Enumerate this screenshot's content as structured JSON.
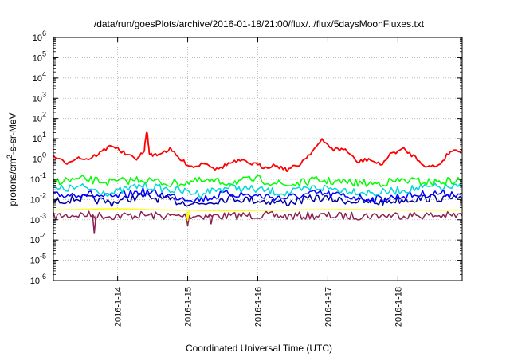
{
  "chart_data": {
    "type": "line",
    "title": "/data/run/goesPlots/archive/2016-01-18/21:00/flux/../flux/5daysMoonFluxes.txt",
    "xlabel": "Coordinated Universal Time (UTC)",
    "ylabel_parts": [
      "protons/cm",
      "2",
      "-s-sr-MeV"
    ],
    "y_scale": "log",
    "ylim": [
      1e-06,
      1000000.0
    ],
    "y_ticks": [
      {
        "base": "10",
        "exp": "-6",
        "value": 1e-06
      },
      {
        "base": "10",
        "exp": "-5",
        "value": 1e-05
      },
      {
        "base": "10",
        "exp": "-4",
        "value": 0.0001
      },
      {
        "base": "10",
        "exp": "-3",
        "value": 0.001
      },
      {
        "base": "10",
        "exp": "-2",
        "value": 0.01
      },
      {
        "base": "10",
        "exp": "-1",
        "value": 0.1
      },
      {
        "base": "10",
        "exp": "0",
        "value": 1
      },
      {
        "base": "10",
        "exp": "1",
        "value": 10
      },
      {
        "base": "10",
        "exp": "2",
        "value": 100
      },
      {
        "base": "10",
        "exp": "3",
        "value": 1000
      },
      {
        "base": "10",
        "exp": "4",
        "value": 10000
      },
      {
        "base": "10",
        "exp": "5",
        "value": 100000
      },
      {
        "base": "10",
        "exp": "6",
        "value": 1000000
      }
    ],
    "xlim": [
      "2016-01-13 02:00",
      "2016-01-18 22:00"
    ],
    "x_ticks": [
      {
        "label": "2016-1-14",
        "value": "2016-01-14 00:00"
      },
      {
        "label": "2016-1-15",
        "value": "2016-01-15 00:00"
      },
      {
        "label": "2016-1-16",
        "value": "2016-01-16 00:00"
      },
      {
        "label": "2016-1-17",
        "value": "2016-01-17 00:00"
      },
      {
        "label": "2016-1-18",
        "value": "2016-01-18 00:00"
      }
    ],
    "grid": true,
    "series": [
      {
        "color": "#ff0000",
        "x": [
          "2016-01-13 02:00",
          "2016-01-13 06:00",
          "2016-01-13 10:00",
          "2016-01-13 14:00",
          "2016-01-13 18:00",
          "2016-01-13 22:00",
          "2016-01-14 02:00",
          "2016-01-14 06:00",
          "2016-01-14 09:00",
          "2016-01-14 10:00",
          "2016-01-14 11:00",
          "2016-01-14 14:00",
          "2016-01-14 18:00",
          "2016-01-14 22:00",
          "2016-01-15 02:00",
          "2016-01-15 06:00",
          "2016-01-15 10:00",
          "2016-01-15 14:00",
          "2016-01-15 18:00",
          "2016-01-15 22:00",
          "2016-01-16 02:00",
          "2016-01-16 06:00",
          "2016-01-16 10:00",
          "2016-01-16 14:00",
          "2016-01-16 18:00",
          "2016-01-16 22:00",
          "2016-01-17 02:00",
          "2016-01-17 06:00",
          "2016-01-17 10:00",
          "2016-01-17 14:00",
          "2016-01-17 18:00",
          "2016-01-17 22:00",
          "2016-01-18 02:00",
          "2016-01-18 06:00",
          "2016-01-18 10:00",
          "2016-01-18 14:00",
          "2016-01-18 18:00",
          "2016-01-18 22:00"
        ],
        "values": [
          1.5,
          0.6,
          1.2,
          1.0,
          2.0,
          5.0,
          2.0,
          1.0,
          2.0,
          25,
          1.5,
          1.8,
          3.0,
          0.8,
          0.4,
          0.7,
          0.3,
          0.6,
          0.8,
          0.6,
          0.4,
          0.5,
          0.3,
          0.5,
          2.0,
          8.0,
          3.0,
          3.0,
          0.7,
          1.0,
          0.5,
          2.0,
          3.0,
          1.2,
          0.4,
          0.5,
          2.5,
          2.8
        ]
      },
      {
        "color": "#00ff00",
        "x": [
          "2016-01-13 02:00",
          "2016-01-13 12:00",
          "2016-01-13 22:00",
          "2016-01-14 08:00",
          "2016-01-14 18:00",
          "2016-01-15 04:00",
          "2016-01-15 14:00",
          "2016-01-16 00:00",
          "2016-01-16 10:00",
          "2016-01-16 20:00",
          "2016-01-17 06:00",
          "2016-01-17 16:00",
          "2016-01-18 02:00",
          "2016-01-18 12:00",
          "2016-01-18 22:00"
        ],
        "values": [
          0.08,
          0.1,
          0.07,
          0.1,
          0.06,
          0.08,
          0.07,
          0.1,
          0.05,
          0.09,
          0.07,
          0.06,
          0.09,
          0.07,
          0.09
        ]
      },
      {
        "color": "#00d8d8",
        "x": [
          "2016-01-13 02:00",
          "2016-01-13 12:00",
          "2016-01-13 22:00",
          "2016-01-14 08:00",
          "2016-01-14 18:00",
          "2016-01-15 04:00",
          "2016-01-15 14:00",
          "2016-01-16 00:00",
          "2016-01-16 10:00",
          "2016-01-16 20:00",
          "2016-01-17 06:00",
          "2016-01-17 16:00",
          "2016-01-18 02:00",
          "2016-01-18 12:00",
          "2016-01-18 22:00"
        ],
        "values": [
          0.03,
          0.04,
          0.02,
          0.05,
          0.03,
          0.02,
          0.04,
          0.03,
          0.02,
          0.04,
          0.03,
          0.02,
          0.03,
          0.04,
          0.04
        ]
      },
      {
        "color": "#0000ff",
        "x": [
          "2016-01-13 02:00",
          "2016-01-13 12:00",
          "2016-01-13 22:00",
          "2016-01-14 08:00",
          "2016-01-14 18:00",
          "2016-01-15 04:00",
          "2016-01-15 14:00",
          "2016-01-16 00:00",
          "2016-01-16 10:00",
          "2016-01-16 20:00",
          "2016-01-17 06:00",
          "2016-01-17 16:00",
          "2016-01-18 02:00",
          "2016-01-18 12:00",
          "2016-01-18 22:00"
        ],
        "values": [
          0.015,
          0.02,
          0.012,
          0.025,
          0.015,
          0.01,
          0.02,
          0.015,
          0.012,
          0.02,
          0.015,
          0.01,
          0.015,
          0.02,
          0.02
        ]
      },
      {
        "color": "#0000a0",
        "x": [
          "2016-01-13 02:00",
          "2016-01-13 12:00",
          "2016-01-13 22:00",
          "2016-01-14 08:00",
          "2016-01-14 18:00",
          "2016-01-15 04:00",
          "2016-01-15 14:00",
          "2016-01-16 00:00",
          "2016-01-16 10:00",
          "2016-01-16 20:00",
          "2016-01-17 06:00",
          "2016-01-17 16:00",
          "2016-01-18 02:00",
          "2016-01-18 12:00",
          "2016-01-18 22:00"
        ],
        "values": [
          0.008,
          0.012,
          0.007,
          0.015,
          0.009,
          0.006,
          0.012,
          0.009,
          0.007,
          0.012,
          0.009,
          0.007,
          0.01,
          0.012,
          0.011
        ]
      },
      {
        "color": "#ffff00",
        "x": [
          "2016-01-13 02:00",
          "2016-01-13 22:00",
          "2016-01-14 18:00",
          "2016-01-15 14:00",
          "2016-01-16 10:00",
          "2016-01-17 06:00",
          "2016-01-18 02:00",
          "2016-01-18 22:00"
        ],
        "values": [
          0.003,
          0.0035,
          0.003,
          0.0028,
          0.003,
          0.0032,
          0.003,
          0.003
        ]
      },
      {
        "color": "#8b2252",
        "x": [
          "2016-01-13 02:00",
          "2016-01-13 12:00",
          "2016-01-13 22:00",
          "2016-01-14 08:00",
          "2016-01-14 18:00",
          "2016-01-15 04:00",
          "2016-01-15 14:00",
          "2016-01-16 00:00",
          "2016-01-16 10:00",
          "2016-01-16 20:00",
          "2016-01-17 06:00",
          "2016-01-17 16:00",
          "2016-01-18 02:00",
          "2016-01-18 12:00",
          "2016-01-18 22:00"
        ],
        "values": [
          0.0015,
          0.0018,
          0.0015,
          0.0017,
          0.0015,
          0.0016,
          0.0015,
          0.0017,
          0.0015,
          0.0016,
          0.0015,
          0.0016,
          0.0017,
          0.0016,
          0.0016
        ]
      }
    ],
    "spikes": [
      {
        "color": "#8b2252",
        "x": "2016-01-13 16:00",
        "value": 0.0002
      },
      {
        "color": "#8b2252",
        "x": "2016-01-15 00:00",
        "value": 0.0005
      },
      {
        "color": "#8b2252",
        "x": "2016-01-15 08:00",
        "value": 0.0006
      },
      {
        "color": "#ffff00",
        "x": "2016-01-15 00:00",
        "value": 0.0009
      }
    ]
  }
}
